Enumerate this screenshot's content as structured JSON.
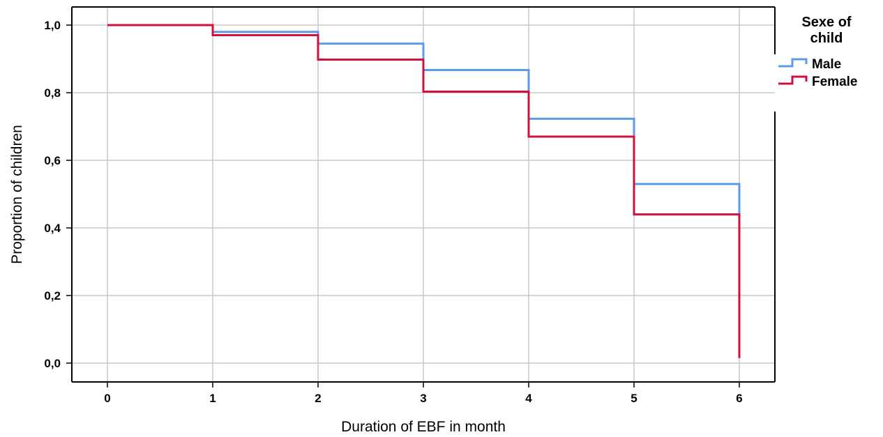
{
  "chart_data": {
    "type": "line",
    "step": true,
    "xlabel": "Duration of EBF in month",
    "ylabel": "Proportion of children",
    "xlim": [
      0,
      6
    ],
    "ylim": [
      0,
      1
    ],
    "x_ticks": [
      "0",
      "1",
      "2",
      "3",
      "4",
      "5",
      "6"
    ],
    "y_ticks": [
      "0,0",
      "0,2",
      "0,4",
      "0,6",
      "0,8",
      "1,0"
    ],
    "grid": true,
    "legend": {
      "title_line1": "Sexe of",
      "title_line2": "child",
      "placement": "right"
    },
    "series": [
      {
        "name": "Male",
        "color": "#5b9bea",
        "x": [
          0,
          1,
          2,
          3,
          4,
          5,
          6
        ],
        "values": [
          1.0,
          0.98,
          0.945,
          0.867,
          0.723,
          0.53,
          0.44
        ]
      },
      {
        "name": "Female",
        "color": "#d0103a",
        "x": [
          0,
          1,
          2,
          3,
          4,
          5,
          6
        ],
        "values": [
          1.0,
          0.97,
          0.898,
          0.803,
          0.67,
          0.44,
          0.015
        ]
      }
    ]
  }
}
